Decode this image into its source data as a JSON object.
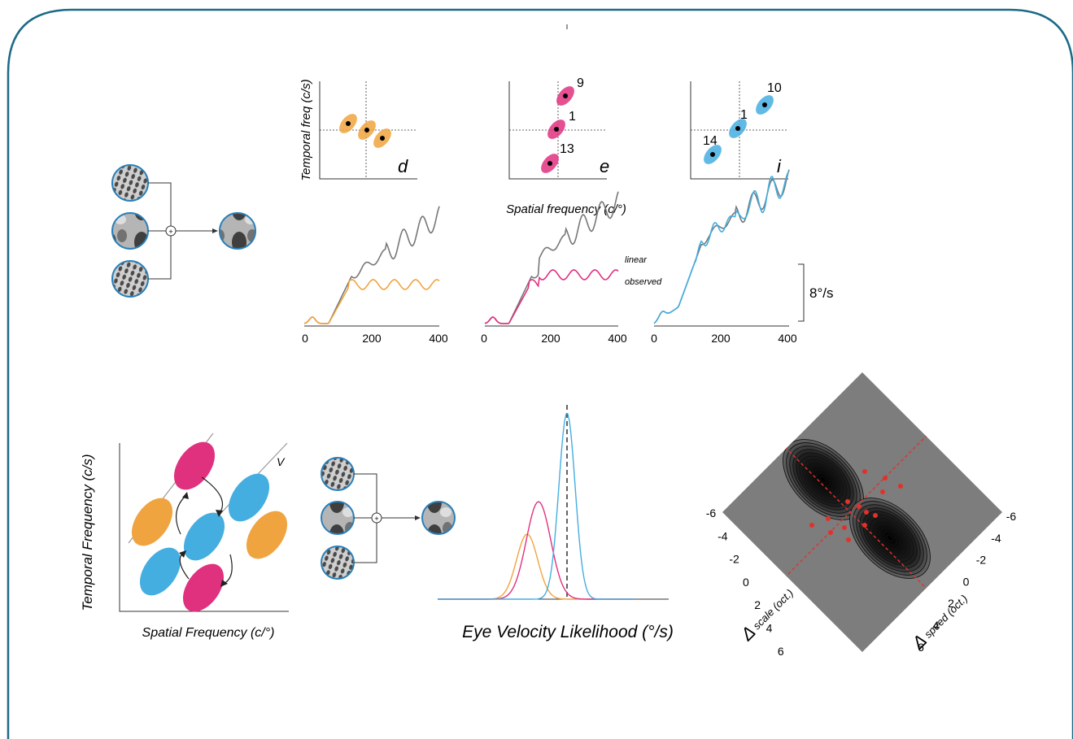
{
  "panel_letters": [
    "d",
    "e",
    "i"
  ],
  "top_axes": {
    "ylabel": "Temporal freq  (c/s)",
    "xlabel": "Spatial frequency  (c/°)"
  },
  "top_scatter": {
    "d": {
      "color": "#f0a440",
      "labels": []
    },
    "e": {
      "color": "#e0317f",
      "labels": [
        "9",
        "1",
        "13"
      ]
    },
    "i": {
      "color": "#45aee0",
      "labels": [
        "10",
        "1",
        "14"
      ]
    }
  },
  "traces": {
    "legend": [
      "linear",
      "observed"
    ],
    "x_ticks": [
      "0",
      "200",
      "400"
    ],
    "scale_bar": "8°/s",
    "colors": {
      "linear": "#777777",
      "observed_d": "#f0a440",
      "observed_e": "#e0317f",
      "observed_i": "#45aee0"
    }
  },
  "bottom_left": {
    "xlabel": "Spatial Frequency (c/°)",
    "ylabel": "Temporal Frequency (c/s)",
    "line_label": "V"
  },
  "likelihood": {
    "xlabel": "Eye Velocity Likelihood (°/s)",
    "colors": [
      "#f0a440",
      "#e0317f",
      "#45aee0"
    ]
  },
  "contour": {
    "left_axis_label": "scale (oct.)",
    "right_axis_label": "speed (oct.)",
    "delta": "Δ",
    "ticks": [
      "-6",
      "-4",
      "-2",
      "0",
      "2",
      "4",
      "6"
    ],
    "background": "#7d7d7d",
    "point_color": "#e2312b"
  },
  "frame_color": "#1b6a86"
}
